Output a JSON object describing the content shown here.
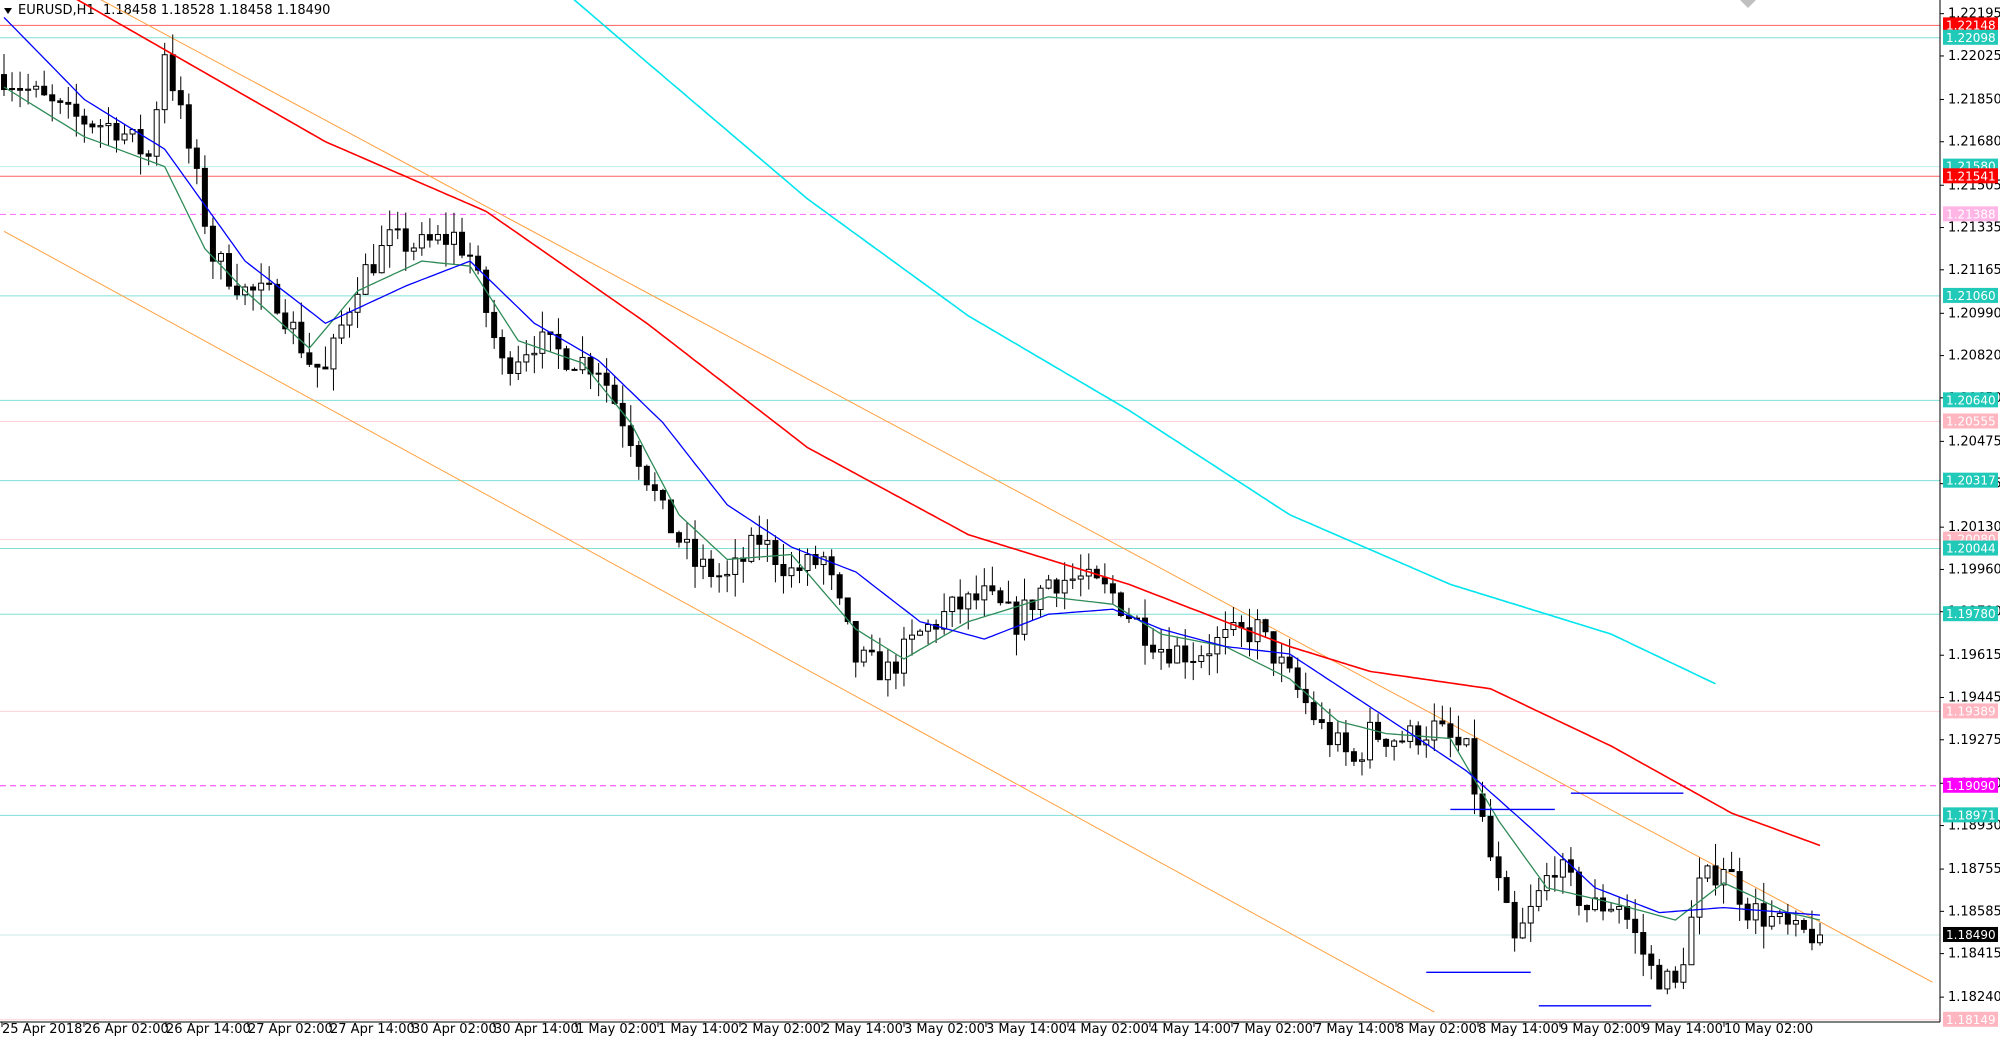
{
  "header": {
    "symbol": "EURUSD,H1",
    "ohlc": "1.18458 1.18528 1.18458 1.18490"
  },
  "colors": {
    "background": "#ffffff",
    "bull_body": "#ffffff",
    "bear_body": "#000000",
    "ma_fast": "#2e8b57",
    "ma_mid": "#0000ff",
    "ma_slow": "#ff0000",
    "ma_long": "#00e5ee",
    "channel": "#ffa040",
    "level_cyan": "#20c0b0",
    "level_red": "#ff0000",
    "level_magenta": "#ff00ff",
    "level_pink": "#ffb6c1",
    "current_price_bg": "#000000"
  },
  "chart_data": {
    "type": "candlestick",
    "symbol": "EURUSD",
    "timeframe": "H1",
    "ylim": [
      1.1814,
      1.2225
    ],
    "y_ticks": [
      "1.22195",
      "1.22025",
      "1.21850",
      "1.21680",
      "1.21505",
      "1.21335",
      "1.21165",
      "1.20990",
      "1.20820",
      "1.20650",
      "1.20475",
      "1.20305",
      "1.20130",
      "1.19960",
      "1.19790",
      "1.19615",
      "1.19445",
      "1.19275",
      "1.19100",
      "1.18930",
      "1.18755",
      "1.18585",
      "1.18415",
      "1.18240"
    ],
    "x_ticks": [
      "25 Apr 2018",
      "26 Apr 02:00",
      "26 Apr 14:00",
      "27 Apr 02:00",
      "27 Apr 14:00",
      "30 Apr 02:00",
      "30 Apr 14:00",
      "1 May 02:00",
      "1 May 14:00",
      "2 May 02:00",
      "2 May 14:00",
      "3 May 02:00",
      "3 May 14:00",
      "4 May 02:00",
      "4 May 14:00",
      "7 May 02:00",
      "7 May 14:00",
      "8 May 02:00",
      "8 May 14:00",
      "9 May 02:00",
      "9 May 14:00",
      "10 May 02:00"
    ],
    "bar_count": 240,
    "price_points": [
      [
        0,
        1.2195
      ],
      [
        8,
        1.2178
      ],
      [
        14,
        1.2174
      ],
      [
        18,
        1.2162
      ],
      [
        20,
        1.2205
      ],
      [
        24,
        1.2152
      ],
      [
        26,
        1.2122
      ],
      [
        30,
        1.2108
      ],
      [
        34,
        1.2105
      ],
      [
        38,
        1.208
      ],
      [
        40,
        1.2075
      ],
      [
        44,
        1.2112
      ],
      [
        48,
        1.2128
      ],
      [
        52,
        1.2126
      ],
      [
        56,
        1.213
      ],
      [
        58,
        1.2122
      ],
      [
        62,
        1.2078
      ],
      [
        66,
        1.2088
      ],
      [
        70,
        1.2082
      ],
      [
        74,
        1.2078
      ],
      [
        78,
        1.205
      ],
      [
        82,
        1.2018
      ],
      [
        86,
        1.1998
      ],
      [
        90,
        1.1992
      ],
      [
        94,
        1.2008
      ],
      [
        98,
        1.1995
      ],
      [
        102,
        1.2
      ],
      [
        106,
        1.196
      ],
      [
        110,
        1.1955
      ],
      [
        114,
        1.197
      ],
      [
        118,
        1.198
      ],
      [
        122,
        1.1985
      ],
      [
        126,
        1.1975
      ],
      [
        130,
        1.1992
      ],
      [
        134,
        1.1992
      ],
      [
        138,
        1.1986
      ],
      [
        140,
        1.1978
      ],
      [
        144,
        1.1965
      ],
      [
        148,
        1.1962
      ],
      [
        152,
        1.1968
      ],
      [
        156,
        1.1972
      ],
      [
        160,
        1.1952
      ],
      [
        164,
        1.1932
      ],
      [
        168,
        1.1918
      ],
      [
        170,
        1.193
      ],
      [
        174,
        1.1928
      ],
      [
        178,
        1.1932
      ],
      [
        182,
        1.1922
      ],
      [
        185,
        1.188
      ],
      [
        188,
        1.1845
      ],
      [
        190,
        1.1858
      ],
      [
        193,
        1.1878
      ],
      [
        197,
        1.186
      ],
      [
        201,
        1.1862
      ],
      [
        205,
        1.1835
      ],
      [
        208,
        1.1828
      ],
      [
        211,
        1.1868
      ],
      [
        214,
        1.1878
      ],
      [
        217,
        1.186
      ],
      [
        220,
        1.1855
      ],
      [
        223,
        1.1849
      ],
      [
        226,
        1.185
      ]
    ],
    "moving_averages": [
      {
        "color": "#2e8b57",
        "points": [
          [
            0,
            1.219
          ],
          [
            10,
            1.217
          ],
          [
            20,
            1.2158
          ],
          [
            25,
            1.2125
          ],
          [
            30,
            1.2108
          ],
          [
            38,
            1.2085
          ],
          [
            44,
            1.2108
          ],
          [
            52,
            1.212
          ],
          [
            58,
            1.2118
          ],
          [
            64,
            1.2088
          ],
          [
            72,
            1.2079
          ],
          [
            78,
            1.2055
          ],
          [
            84,
            1.2018
          ],
          [
            90,
            1.2
          ],
          [
            98,
            1.2002
          ],
          [
            106,
            1.1972
          ],
          [
            112,
            1.196
          ],
          [
            120,
            1.1975
          ],
          [
            130,
            1.1985
          ],
          [
            138,
            1.1982
          ],
          [
            144,
            1.197
          ],
          [
            152,
            1.1965
          ],
          [
            160,
            1.1952
          ],
          [
            166,
            1.1935
          ],
          [
            172,
            1.193
          ],
          [
            180,
            1.1928
          ],
          [
            186,
            1.1895
          ],
          [
            192,
            1.1868
          ],
          [
            200,
            1.1862
          ],
          [
            208,
            1.1855
          ],
          [
            214,
            1.187
          ],
          [
            222,
            1.1858
          ],
          [
            226,
            1.1855
          ]
        ]
      },
      {
        "color": "#0000ff",
        "points": [
          [
            0,
            1.2218
          ],
          [
            10,
            1.2185
          ],
          [
            20,
            1.2165
          ],
          [
            30,
            1.212
          ],
          [
            40,
            1.2095
          ],
          [
            50,
            1.211
          ],
          [
            58,
            1.212
          ],
          [
            66,
            1.2095
          ],
          [
            74,
            1.208
          ],
          [
            82,
            1.2055
          ],
          [
            90,
            1.2022
          ],
          [
            98,
            1.2005
          ],
          [
            106,
            1.1995
          ],
          [
            114,
            1.1975
          ],
          [
            122,
            1.1968
          ],
          [
            130,
            1.1978
          ],
          [
            138,
            1.198
          ],
          [
            144,
            1.1972
          ],
          [
            152,
            1.1965
          ],
          [
            160,
            1.1962
          ],
          [
            168,
            1.1945
          ],
          [
            176,
            1.1928
          ],
          [
            182,
            1.1915
          ],
          [
            190,
            1.1892
          ],
          [
            198,
            1.1868
          ],
          [
            206,
            1.1858
          ],
          [
            214,
            1.186
          ],
          [
            226,
            1.1857
          ]
        ]
      },
      {
        "color": "#ff0000",
        "points": [
          [
            0,
            1.2242
          ],
          [
            20,
            1.2205
          ],
          [
            40,
            1.2168
          ],
          [
            60,
            1.214
          ],
          [
            80,
            1.2095
          ],
          [
            100,
            1.2045
          ],
          [
            120,
            1.201
          ],
          [
            140,
            1.199
          ],
          [
            160,
            1.1965
          ],
          [
            170,
            1.1955
          ],
          [
            185,
            1.1948
          ],
          [
            200,
            1.1925
          ],
          [
            215,
            1.1898
          ],
          [
            226,
            1.1885
          ]
        ]
      },
      {
        "color": "#00e5ee",
        "points": [
          [
            62,
            1.225
          ],
          [
            80,
            1.22
          ],
          [
            100,
            1.2145
          ],
          [
            120,
            1.2098
          ],
          [
            140,
            1.206
          ],
          [
            160,
            1.2018
          ],
          [
            180,
            1.199
          ],
          [
            200,
            1.197
          ],
          [
            213,
            1.195
          ]
        ]
      }
    ],
    "channel_lines": [
      {
        "color": "#ffa040",
        "from": [
          0,
          1.2246
        ],
        "to": [
          240,
          1.183
        ]
      },
      {
        "color": "#ffa040",
        "from": [
          0,
          1.2132
        ],
        "to": [
          178,
          1.1818
        ]
      }
    ],
    "drawn_segments": [
      {
        "color": "#0000ff",
        "from": [
          180,
          1.18995
        ],
        "to": [
          193,
          1.18995
        ]
      },
      {
        "color": "#0000ff",
        "from": [
          177,
          1.1834
        ],
        "to": [
          190,
          1.1834
        ]
      },
      {
        "color": "#0000ff",
        "from": [
          195,
          1.1906
        ],
        "to": [
          209,
          1.1906
        ]
      },
      {
        "color": "#0000ff",
        "from": [
          191,
          1.18205
        ],
        "to": [
          205,
          1.18205
        ]
      }
    ],
    "levels": [
      {
        "price": 1.22148,
        "label": "1.22148",
        "style": "red"
      },
      {
        "price": 1.22098,
        "label": "1.22098",
        "style": "cyan"
      },
      {
        "price": 1.2158,
        "label": "1.21580",
        "style": "cyan-faint"
      },
      {
        "price": 1.21541,
        "label": "1.21541",
        "style": "red"
      },
      {
        "price": 1.21388,
        "label": "1.21388",
        "style": "magenta-dash"
      },
      {
        "price": 1.2106,
        "label": "1.21060",
        "style": "cyan"
      },
      {
        "price": 1.2064,
        "label": "1.20640",
        "style": "cyan"
      },
      {
        "price": 1.20555,
        "label": "1.20555",
        "style": "pink"
      },
      {
        "price": 1.20317,
        "label": "1.20317",
        "style": "cyan"
      },
      {
        "price": 1.2008,
        "label": "1.20080",
        "style": "pink"
      },
      {
        "price": 1.20044,
        "label": "1.20044",
        "style": "cyan"
      },
      {
        "price": 1.1978,
        "label": "1.19780",
        "style": "cyan"
      },
      {
        "price": 1.19389,
        "label": "1.19389",
        "style": "pink"
      },
      {
        "price": 1.1909,
        "label": "1.19090",
        "style": "magenta-solid"
      },
      {
        "price": 1.18971,
        "label": "1.18971",
        "style": "cyan"
      },
      {
        "price": 1.1849,
        "label": "1.18490",
        "style": "current"
      },
      {
        "price": 1.18149,
        "label": "1.18149",
        "style": "pink"
      }
    ]
  }
}
